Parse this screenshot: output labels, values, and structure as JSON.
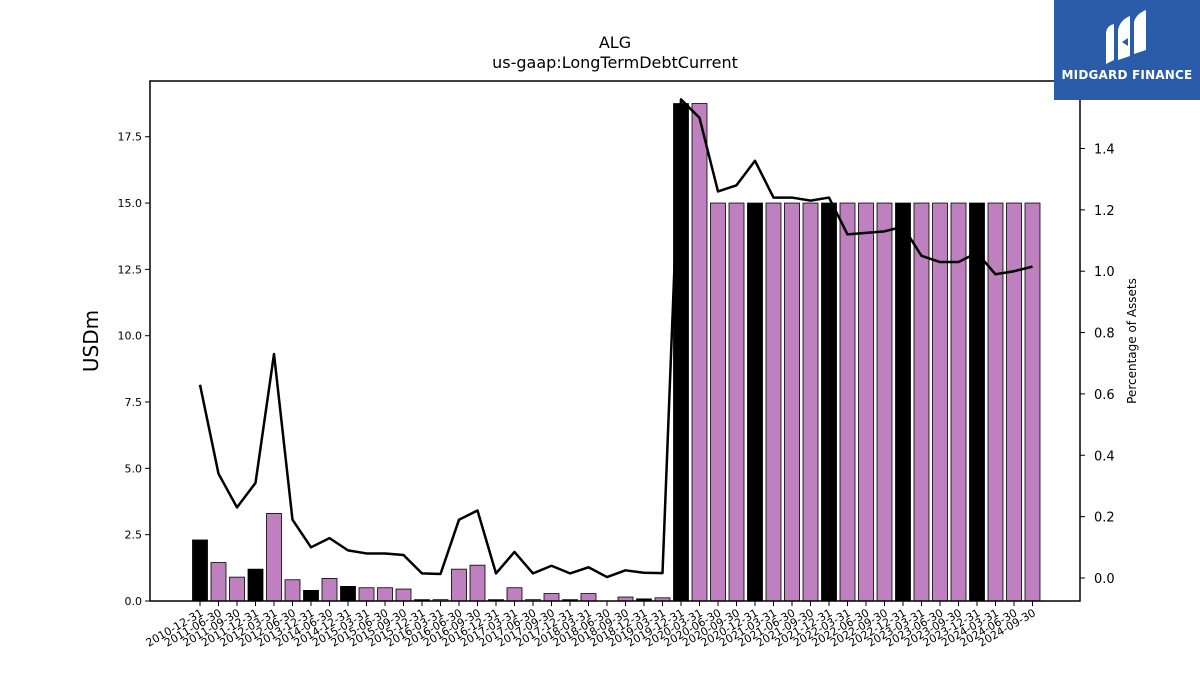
{
  "brand": {
    "name": "MIDGARD FINANCE",
    "background": "#2a5caa",
    "icon": "midgard-logo-icon"
  },
  "chart_data": {
    "type": "bar",
    "title": "ALG",
    "subtitle": "us-gaap:LongTermDebtCurrent",
    "ylabel": "USDm",
    "y2label": "Percentage of Assets",
    "ylim": [
      0,
      19.6
    ],
    "y2lim": [
      -0.075,
      1.62
    ],
    "yticks": [
      "0.0",
      "2.5",
      "5.0",
      "7.5",
      "10.0",
      "12.5",
      "15.0",
      "17.5"
    ],
    "y2ticks": [
      "0.0",
      "0.2",
      "0.4",
      "0.6",
      "0.8",
      "1.0",
      "1.2",
      "1.4"
    ],
    "grid": false,
    "colors": {
      "annual": "#000000",
      "quarterly": "#bf80bf",
      "line": "#000000"
    },
    "categories": [
      "2010-12-31",
      "2011-06-30",
      "2011-09-30",
      "2011-12-31",
      "2012-03-31",
      "2012-06-30",
      "2013-12-31",
      "2014-06-30",
      "2014-12-31",
      "2015-03-31",
      "2015-06-30",
      "2015-09-30",
      "2015-12-31",
      "2016-03-31",
      "2016-06-30",
      "2016-09-30",
      "2016-12-31",
      "2017-03-31",
      "2017-06-30",
      "2017-09-30",
      "2017-12-31",
      "2018-03-31",
      "2018-06-30",
      "2018-09-30",
      "2018-12-31",
      "2019-03-31",
      "2019-12-31",
      "2020-03-31",
      "2020-06-30",
      "2020-09-30",
      "2020-12-31",
      "2021-03-31",
      "2021-06-30",
      "2021-09-30",
      "2021-12-31",
      "2022-03-31",
      "2022-06-30",
      "2022-09-30",
      "2022-12-31",
      "2023-03-31",
      "2023-06-30",
      "2023-09-30",
      "2023-12-31",
      "2024-03-31",
      "2024-06-30",
      "2024-09-30"
    ],
    "values": [
      2.3,
      1.45,
      0.9,
      1.2,
      3.3,
      0.8,
      0.4,
      0.85,
      0.55,
      0.5,
      0.5,
      0.45,
      0.05,
      0.05,
      1.2,
      1.35,
      0.05,
      0.5,
      0.05,
      0.28,
      0.05,
      0.28,
      0.0,
      0.15,
      0.08,
      0.12,
      18.75,
      18.75,
      15.0,
      15.0,
      15.0,
      15.0,
      15.0,
      15.0,
      15.0,
      15.0,
      15.0,
      15.0,
      15.0,
      15.0,
      15.0,
      15.0,
      15.0,
      15.0,
      15.0,
      15.0
    ],
    "annual": [
      true,
      false,
      false,
      true,
      false,
      false,
      true,
      false,
      true,
      false,
      false,
      false,
      true,
      false,
      false,
      false,
      true,
      false,
      false,
      false,
      true,
      false,
      false,
      false,
      true,
      false,
      true,
      false,
      false,
      false,
      true,
      false,
      false,
      false,
      true,
      false,
      false,
      false,
      true,
      false,
      false,
      false,
      true,
      false,
      false,
      false
    ],
    "percent_of_assets": [
      0.63,
      0.34,
      0.23,
      0.31,
      0.73,
      0.19,
      0.1,
      0.13,
      0.09,
      0.08,
      0.08,
      0.075,
      0.015,
      0.013,
      0.19,
      0.22,
      0.015,
      0.085,
      0.015,
      0.04,
      0.015,
      0.035,
      0.003,
      0.025,
      0.017,
      0.016,
      1.56,
      1.5,
      1.26,
      1.28,
      1.36,
      1.24,
      1.24,
      1.23,
      1.24,
      1.12,
      1.125,
      1.13,
      1.145,
      1.05,
      1.03,
      1.03,
      1.06,
      0.99,
      1.0,
      1.015
    ]
  }
}
